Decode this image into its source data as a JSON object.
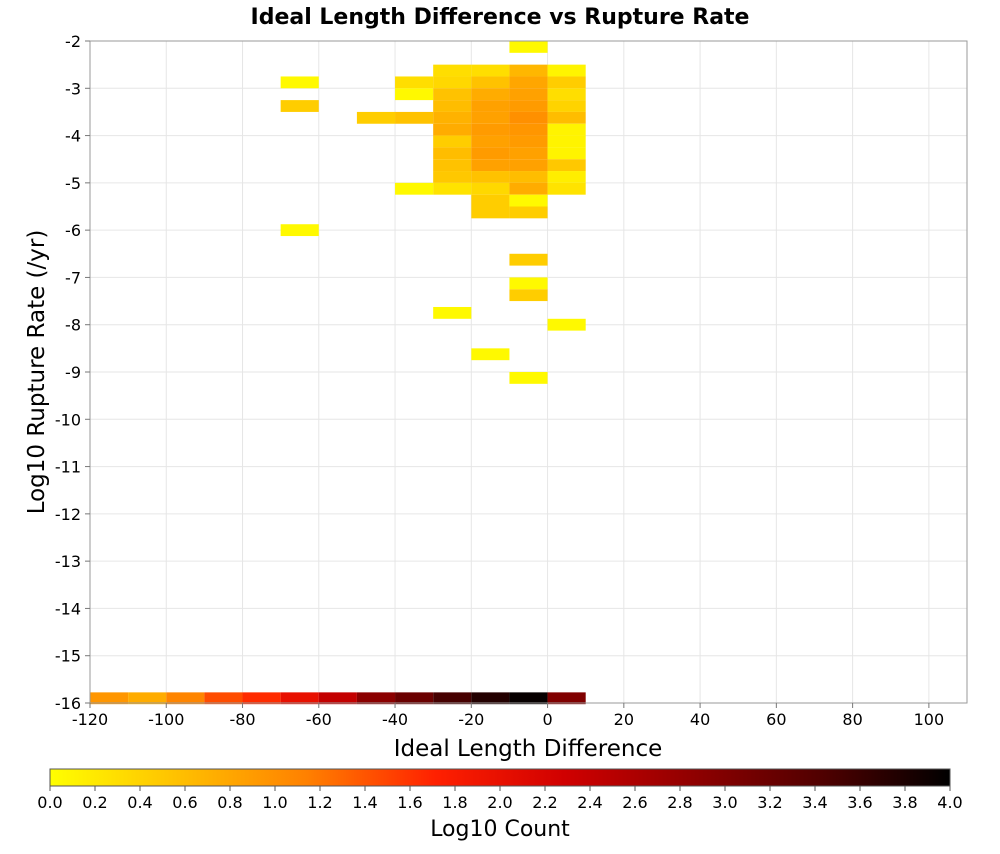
{
  "chart_data": {
    "type": "heatmap",
    "title": "Ideal Length Difference vs Rupture Rate",
    "xlabel": "Ideal Length Difference",
    "ylabel": "Log10 Rupture Rate (/yr)",
    "xlim": [
      -120,
      110
    ],
    "ylim": [
      -16,
      -2
    ],
    "x_ticks": [
      "-120",
      "-100",
      "-80",
      "-60",
      "-40",
      "-20",
      "0",
      "20",
      "40",
      "60",
      "80",
      "100"
    ],
    "y_ticks": [
      "-2",
      "-3",
      "-4",
      "-5",
      "-6",
      "-7",
      "-8",
      "-9",
      "-10",
      "-11",
      "-12",
      "-13",
      "-14",
      "-15",
      "-16"
    ],
    "x_bin_width": 10,
    "y_bin_height": 0.25,
    "grid": true,
    "colorbar": {
      "label": "Log10 Count",
      "range": [
        0,
        4
      ],
      "ticks": [
        "0.0",
        "0.2",
        "0.4",
        "0.6",
        "0.8",
        "1.0",
        "1.2",
        "1.4",
        "1.6",
        "1.8",
        "2.0",
        "2.2",
        "2.4",
        "2.6",
        "2.8",
        "3.0",
        "3.2",
        "3.4",
        "3.6",
        "3.8",
        "4.0"
      ],
      "colors": [
        "#ffff00",
        "#ffc000",
        "#ff8000",
        "#ff2000",
        "#d00000",
        "#900000",
        "#500000",
        "#000000"
      ]
    },
    "cells": [
      {
        "x": -5,
        "y": -2.125,
        "v": 0.05
      },
      {
        "x": -25,
        "y": -2.625,
        "v": 0.3
      },
      {
        "x": -15,
        "y": -2.625,
        "v": 0.3
      },
      {
        "x": -5,
        "y": -2.625,
        "v": 0.65
      },
      {
        "x": 5,
        "y": -2.625,
        "v": 0.1
      },
      {
        "x": -65,
        "y": -2.875,
        "v": 0.05
      },
      {
        "x": -35,
        "y": -2.875,
        "v": 0.3
      },
      {
        "x": -25,
        "y": -2.875,
        "v": 0.35
      },
      {
        "x": -15,
        "y": -2.875,
        "v": 0.55
      },
      {
        "x": -5,
        "y": -2.875,
        "v": 0.8
      },
      {
        "x": 5,
        "y": -2.875,
        "v": 0.45
      },
      {
        "x": -35,
        "y": -3.125,
        "v": 0.05
      },
      {
        "x": -25,
        "y": -3.125,
        "v": 0.55
      },
      {
        "x": -15,
        "y": -3.125,
        "v": 0.75
      },
      {
        "x": -5,
        "y": -3.125,
        "v": 0.85
      },
      {
        "x": 5,
        "y": -3.125,
        "v": 0.3
      },
      {
        "x": -65,
        "y": -3.375,
        "v": 0.45
      },
      {
        "x": -25,
        "y": -3.375,
        "v": 0.6
      },
      {
        "x": -15,
        "y": -3.375,
        "v": 0.85
      },
      {
        "x": -5,
        "y": -3.375,
        "v": 0.9
      },
      {
        "x": 5,
        "y": -3.375,
        "v": 0.4
      },
      {
        "x": -45,
        "y": -3.625,
        "v": 0.45
      },
      {
        "x": -35,
        "y": -3.625,
        "v": 0.55
      },
      {
        "x": -25,
        "y": -3.625,
        "v": 0.7
      },
      {
        "x": -15,
        "y": -3.625,
        "v": 0.85
      },
      {
        "x": -5,
        "y": -3.625,
        "v": 1.0
      },
      {
        "x": 5,
        "y": -3.625,
        "v": 0.6
      },
      {
        "x": -25,
        "y": -3.875,
        "v": 0.75
      },
      {
        "x": -15,
        "y": -3.875,
        "v": 0.9
      },
      {
        "x": -5,
        "y": -3.875,
        "v": 0.95
      },
      {
        "x": 5,
        "y": -3.875,
        "v": 0.1
      },
      {
        "x": -25,
        "y": -4.125,
        "v": 0.45
      },
      {
        "x": -15,
        "y": -4.125,
        "v": 0.85
      },
      {
        "x": -5,
        "y": -4.125,
        "v": 0.9
      },
      {
        "x": 5,
        "y": -4.125,
        "v": 0.1
      },
      {
        "x": -25,
        "y": -4.375,
        "v": 0.6
      },
      {
        "x": -15,
        "y": -4.375,
        "v": 0.9
      },
      {
        "x": -5,
        "y": -4.375,
        "v": 0.85
      },
      {
        "x": 5,
        "y": -4.375,
        "v": 0.1
      },
      {
        "x": -25,
        "y": -4.625,
        "v": 0.55
      },
      {
        "x": -15,
        "y": -4.625,
        "v": 0.85
      },
      {
        "x": -5,
        "y": -4.625,
        "v": 0.85
      },
      {
        "x": 5,
        "y": -4.625,
        "v": 0.5
      },
      {
        "x": -25,
        "y": -4.875,
        "v": 0.5
      },
      {
        "x": -15,
        "y": -4.875,
        "v": 0.55
      },
      {
        "x": -5,
        "y": -4.875,
        "v": 0.6
      },
      {
        "x": 5,
        "y": -4.875,
        "v": 0.15
      },
      {
        "x": -35,
        "y": -5.125,
        "v": 0.05
      },
      {
        "x": -25,
        "y": -5.125,
        "v": 0.25
      },
      {
        "x": -15,
        "y": -5.125,
        "v": 0.35
      },
      {
        "x": -5,
        "y": -5.125,
        "v": 0.75
      },
      {
        "x": 5,
        "y": -5.125,
        "v": 0.25
      },
      {
        "x": -15,
        "y": -5.375,
        "v": 0.45
      },
      {
        "x": -5,
        "y": -5.375,
        "v": 0.05
      },
      {
        "x": -15,
        "y": -5.625,
        "v": 0.45
      },
      {
        "x": -5,
        "y": -5.625,
        "v": 0.45
      },
      {
        "x": -65,
        "y": -6.0,
        "v": 0.05
      },
      {
        "x": -5,
        "y": -6.625,
        "v": 0.45
      },
      {
        "x": -5,
        "y": -7.125,
        "v": 0.05
      },
      {
        "x": -5,
        "y": -7.375,
        "v": 0.45
      },
      {
        "x": -25,
        "y": -7.75,
        "v": 0.05
      },
      {
        "x": 5,
        "y": -8.0,
        "v": 0.05
      },
      {
        "x": -15,
        "y": -8.625,
        "v": 0.05
      },
      {
        "x": -5,
        "y": -9.125,
        "v": 0.05
      },
      {
        "x": -115,
        "y": -15.9,
        "v": 0.95
      },
      {
        "x": -105,
        "y": -15.9,
        "v": 0.75
      },
      {
        "x": -95,
        "y": -15.9,
        "v": 1.1
      },
      {
        "x": -85,
        "y": -15.9,
        "v": 1.45
      },
      {
        "x": -75,
        "y": -15.9,
        "v": 1.65
      },
      {
        "x": -65,
        "y": -15.9,
        "v": 2.0
      },
      {
        "x": -55,
        "y": -15.9,
        "v": 2.4
      },
      {
        "x": -45,
        "y": -15.9,
        "v": 2.9
      },
      {
        "x": -35,
        "y": -15.9,
        "v": 3.2
      },
      {
        "x": -25,
        "y": -15.9,
        "v": 3.5
      },
      {
        "x": -15,
        "y": -15.9,
        "v": 3.75
      },
      {
        "x": -5,
        "y": -15.9,
        "v": 3.95
      },
      {
        "x": 5,
        "y": -15.9,
        "v": 3.0
      }
    ]
  }
}
